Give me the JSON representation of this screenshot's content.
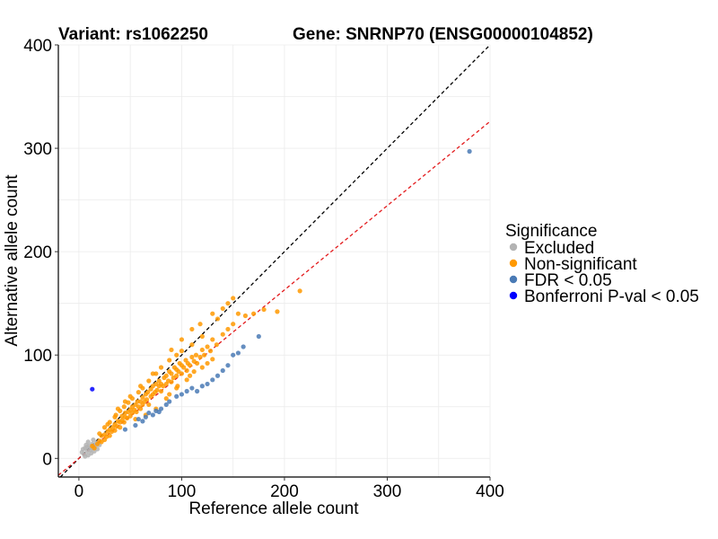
{
  "chart_data": {
    "type": "scatter",
    "title_left": "Variant: rs1062250",
    "title_right": "Gene: SNRNP70 (ENSG00000104852)",
    "xlabel": "Reference allele count",
    "ylabel": "Alternative allele count",
    "xlim": [
      -20,
      400
    ],
    "ylim": [
      -18,
      400
    ],
    "xticks": [
      0,
      100,
      200,
      300,
      400
    ],
    "yticks": [
      0,
      100,
      200,
      300,
      400
    ],
    "grid": true,
    "reference_lines": [
      {
        "name": "identity",
        "slope": 1.0,
        "intercept": 0,
        "color": "#000000",
        "dash": "dashed"
      },
      {
        "name": "fitted-ratio",
        "slope": 0.815,
        "intercept": 0,
        "color": "#e31a1c",
        "dash": "dashed"
      }
    ],
    "legend": {
      "title": "Significance",
      "position": "right",
      "entries": [
        {
          "label": "Excluded",
          "color": "#b3b3b3"
        },
        {
          "label": "Non-significant",
          "color": "#ff9900"
        },
        {
          "label": "FDR < 0.05",
          "color": "#4a7ab5"
        },
        {
          "label": "Bonferroni P-val < 0.05",
          "color": "#0000ff"
        }
      ]
    },
    "series": [
      {
        "name": "Excluded",
        "color": "#b3b3b3",
        "points": [
          [
            3,
            6
          ],
          [
            5,
            4
          ],
          [
            6,
            10
          ],
          [
            8,
            7
          ],
          [
            9,
            3
          ],
          [
            10,
            12
          ],
          [
            11,
            8
          ],
          [
            12,
            5
          ],
          [
            13,
            14
          ],
          [
            14,
            10
          ],
          [
            15,
            7
          ],
          [
            7,
            13
          ],
          [
            4,
            9
          ],
          [
            16,
            12
          ],
          [
            18,
            9
          ],
          [
            6,
            2
          ],
          [
            9,
            16
          ],
          [
            12,
            10
          ],
          [
            17,
            15
          ],
          [
            20,
            13
          ],
          [
            14,
            18
          ],
          [
            8,
            11
          ]
        ]
      },
      {
        "name": "Non-significant",
        "color": "#ff9900",
        "points": [
          [
            13,
            12
          ],
          [
            15,
            10
          ],
          [
            18,
            14
          ],
          [
            20,
            17
          ],
          [
            22,
            16
          ],
          [
            22,
            22
          ],
          [
            25,
            18
          ],
          [
            25,
            23
          ],
          [
            27,
            21
          ],
          [
            28,
            26
          ],
          [
            30,
            22
          ],
          [
            30,
            28
          ],
          [
            32,
            26
          ],
          [
            33,
            30
          ],
          [
            35,
            27
          ],
          [
            35,
            33
          ],
          [
            37,
            31
          ],
          [
            38,
            36
          ],
          [
            40,
            30
          ],
          [
            40,
            35
          ],
          [
            42,
            37
          ],
          [
            42,
            41
          ],
          [
            44,
            35
          ],
          [
            45,
            40
          ],
          [
            45,
            44
          ],
          [
            47,
            39
          ],
          [
            48,
            45
          ],
          [
            50,
            41
          ],
          [
            50,
            47
          ],
          [
            52,
            44
          ],
          [
            52,
            50
          ],
          [
            54,
            47
          ],
          [
            55,
            52
          ],
          [
            56,
            45
          ],
          [
            57,
            55
          ],
          [
            58,
            50
          ],
          [
            60,
            48
          ],
          [
            60,
            55
          ],
          [
            62,
            52
          ],
          [
            62,
            59
          ],
          [
            64,
            55
          ],
          [
            65,
            62
          ],
          [
            66,
            57
          ],
          [
            67,
            64
          ],
          [
            68,
            52
          ],
          [
            70,
            60
          ],
          [
            70,
            67
          ],
          [
            72,
            62
          ],
          [
            72,
            70
          ],
          [
            74,
            64
          ],
          [
            75,
            72
          ],
          [
            76,
            66
          ],
          [
            78,
            70
          ],
          [
            78,
            75
          ],
          [
            80,
            65
          ],
          [
            80,
            72
          ],
          [
            82,
            70
          ],
          [
            83,
            78
          ],
          [
            85,
            72
          ],
          [
            85,
            80
          ],
          [
            87,
            75
          ],
          [
            88,
            84
          ],
          [
            90,
            74
          ],
          [
            90,
            82
          ],
          [
            92,
            78
          ],
          [
            93,
            88
          ],
          [
            95,
            80
          ],
          [
            95,
            86
          ],
          [
            97,
            84
          ],
          [
            98,
            92
          ],
          [
            100,
            82
          ],
          [
            100,
            90
          ],
          [
            102,
            88
          ],
          [
            104,
            95
          ],
          [
            105,
            85
          ],
          [
            106,
            92
          ],
          [
            108,
            90
          ],
          [
            110,
            98
          ],
          [
            112,
            94
          ],
          [
            114,
            100
          ],
          [
            115,
            92
          ],
          [
            118,
            98
          ],
          [
            120,
            105
          ],
          [
            122,
            100
          ],
          [
            125,
            108
          ],
          [
            128,
            104
          ],
          [
            130,
            115
          ],
          [
            134,
            110
          ],
          [
            140,
            120
          ],
          [
            145,
            125
          ],
          [
            150,
            130
          ],
          [
            155,
            140
          ],
          [
            162,
            138
          ],
          [
            170,
            140
          ],
          [
            180,
            144
          ],
          [
            193,
            142
          ],
          [
            215,
            162
          ],
          [
            150,
            155
          ],
          [
            145,
            150
          ],
          [
            135,
            135
          ],
          [
            120,
            118
          ],
          [
            110,
            110
          ],
          [
            100,
            104
          ],
          [
            95,
            100
          ],
          [
            88,
            95
          ],
          [
            80,
            88
          ],
          [
            75,
            82
          ],
          [
            68,
            75
          ],
          [
            62,
            68
          ],
          [
            58,
            64
          ],
          [
            52,
            58
          ],
          [
            48,
            54
          ],
          [
            44,
            50
          ],
          [
            40,
            46
          ],
          [
            36,
            42
          ],
          [
            30,
            35
          ],
          [
            25,
            30
          ],
          [
            20,
            24
          ],
          [
            75,
            48
          ],
          [
            85,
            58
          ],
          [
            95,
            68
          ],
          [
            105,
            76
          ],
          [
            65,
            42
          ],
          [
            55,
            38
          ],
          [
            120,
            88
          ],
          [
            130,
            96
          ],
          [
            60,
            70
          ],
          [
            72,
            82
          ],
          [
            90,
            105
          ],
          [
            100,
            115
          ],
          [
            110,
            125
          ],
          [
            118,
            130
          ],
          [
            130,
            140
          ],
          [
            140,
            145
          ],
          [
            50,
            60
          ],
          [
            45,
            55
          ],
          [
            38,
            48
          ],
          [
            35,
            40
          ],
          [
            28,
            33
          ],
          [
            88,
            62
          ],
          [
            96,
            70
          ],
          [
            108,
            80
          ],
          [
            112,
            84
          ],
          [
            125,
            92
          ]
        ]
      },
      {
        "name": "FDR < 0.05",
        "color": "#4a7ab5",
        "points": [
          [
            45,
            28
          ],
          [
            55,
            32
          ],
          [
            58,
            38
          ],
          [
            62,
            36
          ],
          [
            65,
            40
          ],
          [
            68,
            44
          ],
          [
            72,
            42
          ],
          [
            75,
            46
          ],
          [
            78,
            45
          ],
          [
            80,
            48
          ],
          [
            85,
            52
          ],
          [
            88,
            55
          ],
          [
            95,
            60
          ],
          [
            100,
            62
          ],
          [
            105,
            65
          ],
          [
            110,
            68
          ],
          [
            115,
            65
          ],
          [
            120,
            70
          ],
          [
            125,
            72
          ],
          [
            130,
            76
          ],
          [
            135,
            80
          ],
          [
            140,
            85
          ],
          [
            145,
            90
          ],
          [
            150,
            100
          ],
          [
            155,
            102
          ],
          [
            160,
            108
          ],
          [
            175,
            118
          ],
          [
            380,
            297
          ]
        ]
      },
      {
        "name": "Bonferroni P-val < 0.05",
        "color": "#0000ff",
        "points": [
          [
            13,
            67
          ]
        ]
      }
    ]
  }
}
